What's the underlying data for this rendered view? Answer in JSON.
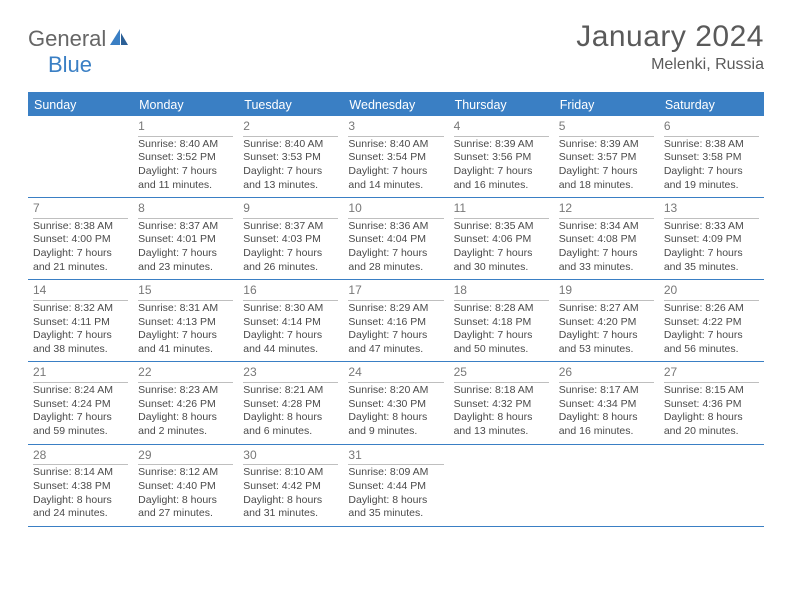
{
  "logo": {
    "text_general": "General",
    "text_blue": "Blue"
  },
  "title": "January 2024",
  "location": "Melenki, Russia",
  "colors": {
    "accent": "#3a7fc4",
    "header_text": "#5a5a5a",
    "body_text": "#4a4a4a",
    "day_number": "#787878",
    "cell_divider": "#bfbfbf",
    "bg": "#ffffff"
  },
  "typography": {
    "title_fontsize": 30,
    "location_fontsize": 16,
    "weekday_fontsize": 12.5,
    "detail_fontsize": 10.5,
    "day_number_fontsize": 12,
    "logo_fontsize": 22
  },
  "weekdays": [
    "Sunday",
    "Monday",
    "Tuesday",
    "Wednesday",
    "Thursday",
    "Friday",
    "Saturday"
  ],
  "weeks": [
    [
      {
        "day": "",
        "sunrise": "",
        "sunset": "",
        "daylight": ""
      },
      {
        "day": "1",
        "sunrise": "8:40 AM",
        "sunset": "3:52 PM",
        "daylight": "7 hours and 11 minutes."
      },
      {
        "day": "2",
        "sunrise": "8:40 AM",
        "sunset": "3:53 PM",
        "daylight": "7 hours and 13 minutes."
      },
      {
        "day": "3",
        "sunrise": "8:40 AM",
        "sunset": "3:54 PM",
        "daylight": "7 hours and 14 minutes."
      },
      {
        "day": "4",
        "sunrise": "8:39 AM",
        "sunset": "3:56 PM",
        "daylight": "7 hours and 16 minutes."
      },
      {
        "day": "5",
        "sunrise": "8:39 AM",
        "sunset": "3:57 PM",
        "daylight": "7 hours and 18 minutes."
      },
      {
        "day": "6",
        "sunrise": "8:38 AM",
        "sunset": "3:58 PM",
        "daylight": "7 hours and 19 minutes."
      }
    ],
    [
      {
        "day": "7",
        "sunrise": "8:38 AM",
        "sunset": "4:00 PM",
        "daylight": "7 hours and 21 minutes."
      },
      {
        "day": "8",
        "sunrise": "8:37 AM",
        "sunset": "4:01 PM",
        "daylight": "7 hours and 23 minutes."
      },
      {
        "day": "9",
        "sunrise": "8:37 AM",
        "sunset": "4:03 PM",
        "daylight": "7 hours and 26 minutes."
      },
      {
        "day": "10",
        "sunrise": "8:36 AM",
        "sunset": "4:04 PM",
        "daylight": "7 hours and 28 minutes."
      },
      {
        "day": "11",
        "sunrise": "8:35 AM",
        "sunset": "4:06 PM",
        "daylight": "7 hours and 30 minutes."
      },
      {
        "day": "12",
        "sunrise": "8:34 AM",
        "sunset": "4:08 PM",
        "daylight": "7 hours and 33 minutes."
      },
      {
        "day": "13",
        "sunrise": "8:33 AM",
        "sunset": "4:09 PM",
        "daylight": "7 hours and 35 minutes."
      }
    ],
    [
      {
        "day": "14",
        "sunrise": "8:32 AM",
        "sunset": "4:11 PM",
        "daylight": "7 hours and 38 minutes."
      },
      {
        "day": "15",
        "sunrise": "8:31 AM",
        "sunset": "4:13 PM",
        "daylight": "7 hours and 41 minutes."
      },
      {
        "day": "16",
        "sunrise": "8:30 AM",
        "sunset": "4:14 PM",
        "daylight": "7 hours and 44 minutes."
      },
      {
        "day": "17",
        "sunrise": "8:29 AM",
        "sunset": "4:16 PM",
        "daylight": "7 hours and 47 minutes."
      },
      {
        "day": "18",
        "sunrise": "8:28 AM",
        "sunset": "4:18 PM",
        "daylight": "7 hours and 50 minutes."
      },
      {
        "day": "19",
        "sunrise": "8:27 AM",
        "sunset": "4:20 PM",
        "daylight": "7 hours and 53 minutes."
      },
      {
        "day": "20",
        "sunrise": "8:26 AM",
        "sunset": "4:22 PM",
        "daylight": "7 hours and 56 minutes."
      }
    ],
    [
      {
        "day": "21",
        "sunrise": "8:24 AM",
        "sunset": "4:24 PM",
        "daylight": "7 hours and 59 minutes."
      },
      {
        "day": "22",
        "sunrise": "8:23 AM",
        "sunset": "4:26 PM",
        "daylight": "8 hours and 2 minutes."
      },
      {
        "day": "23",
        "sunrise": "8:21 AM",
        "sunset": "4:28 PM",
        "daylight": "8 hours and 6 minutes."
      },
      {
        "day": "24",
        "sunrise": "8:20 AM",
        "sunset": "4:30 PM",
        "daylight": "8 hours and 9 minutes."
      },
      {
        "day": "25",
        "sunrise": "8:18 AM",
        "sunset": "4:32 PM",
        "daylight": "8 hours and 13 minutes."
      },
      {
        "day": "26",
        "sunrise": "8:17 AM",
        "sunset": "4:34 PM",
        "daylight": "8 hours and 16 minutes."
      },
      {
        "day": "27",
        "sunrise": "8:15 AM",
        "sunset": "4:36 PM",
        "daylight": "8 hours and 20 minutes."
      }
    ],
    [
      {
        "day": "28",
        "sunrise": "8:14 AM",
        "sunset": "4:38 PM",
        "daylight": "8 hours and 24 minutes."
      },
      {
        "day": "29",
        "sunrise": "8:12 AM",
        "sunset": "4:40 PM",
        "daylight": "8 hours and 27 minutes."
      },
      {
        "day": "30",
        "sunrise": "8:10 AM",
        "sunset": "4:42 PM",
        "daylight": "8 hours and 31 minutes."
      },
      {
        "day": "31",
        "sunrise": "8:09 AM",
        "sunset": "4:44 PM",
        "daylight": "8 hours and 35 minutes."
      },
      {
        "day": "",
        "sunrise": "",
        "sunset": "",
        "daylight": ""
      },
      {
        "day": "",
        "sunrise": "",
        "sunset": "",
        "daylight": ""
      },
      {
        "day": "",
        "sunrise": "",
        "sunset": "",
        "daylight": ""
      }
    ]
  ]
}
